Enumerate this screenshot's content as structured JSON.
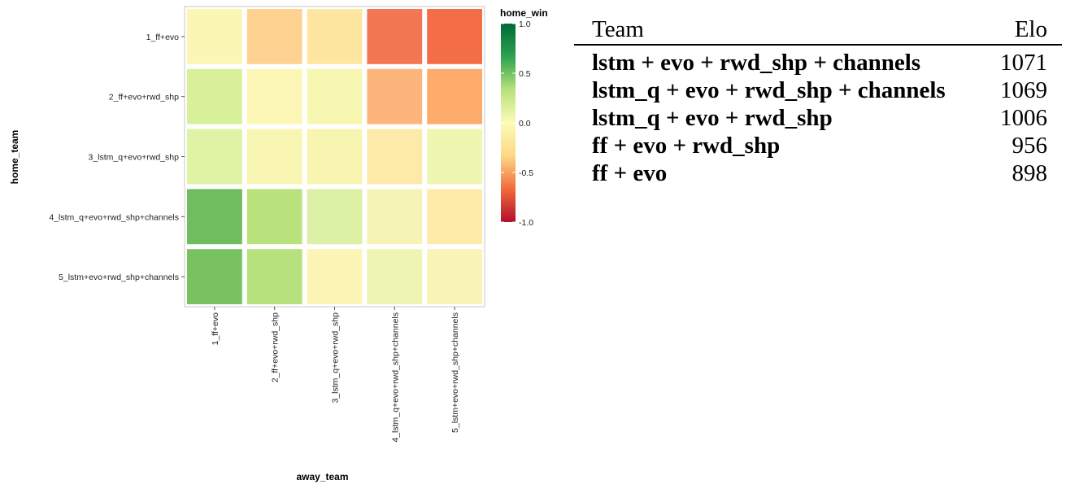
{
  "chart_data": {
    "type": "heatmap",
    "x_title": "away_team",
    "y_title": "home_team",
    "x_categories": [
      "1_ff+evo",
      "2_ff+evo+rwd_shp",
      "3_lstm_q+evo+rwd_shp",
      "4_lstm_q+evo+rwd_shp+channels",
      "5_lstm+evo+rwd_shp+channels"
    ],
    "y_categories": [
      "1_ff+evo",
      "2_ff+evo+rwd_shp",
      "3_lstm_q+evo+rwd_shp",
      "4_lstm_q+evo+rwd_shp+channels",
      "5_lstm+evo+rwd_shp+channels"
    ],
    "values": [
      [
        0.05,
        -0.25,
        -0.15,
        -0.75,
        -0.8
      ],
      [
        0.35,
        0.1,
        0.15,
        -0.5,
        -0.55
      ],
      [
        0.3,
        0.15,
        0.15,
        -0.1,
        0.2
      ],
      [
        0.8,
        0.5,
        0.3,
        0.1,
        -0.05
      ],
      [
        0.75,
        0.5,
        0.05,
        0.15,
        0.1
      ]
    ],
    "legend": {
      "title": "home_win",
      "ticks": [
        "1.0",
        "0.5",
        "0.0",
        "-0.5",
        "-1.0"
      ],
      "tick_values": [
        1.0,
        0.5,
        0.0,
        -0.5,
        -1.0
      ],
      "range": [
        -1.0,
        1.0
      ],
      "placement": "right",
      "colors": [
        "#b2102a",
        "#f16a3e",
        "#fdd884",
        "#fcfbb8",
        "#b7e27a",
        "#2da24f",
        "#006837"
      ]
    },
    "tile_colors": [
      [
        "#fcf6b4",
        "#fed290",
        "#fee6a0",
        "#f37752",
        "#f36e47"
      ],
      [
        "#d9f09a",
        "#fcf7b6",
        "#f8f7b1",
        "#fdb57b",
        "#fdab6b"
      ],
      [
        "#e0f2a4",
        "#f9f5b2",
        "#f8f5b0",
        "#fde9a8",
        "#eef6b2"
      ],
      [
        "#6fbd5f",
        "#b9e27c",
        "#dcf0a6",
        "#f5f4b6",
        "#feeaa9"
      ],
      [
        "#78c261",
        "#b6e17d",
        "#fcf5b6",
        "#eef5b2",
        "#f7f4b6"
      ]
    ],
    "grid": false
  },
  "elo_table": {
    "headers": [
      "Team",
      "Elo"
    ],
    "rows": [
      {
        "team": "lstm + evo + rwd_shp + channels",
        "elo": "1071"
      },
      {
        "team": "lstm_q + evo + rwd_shp + channels",
        "elo": "1069"
      },
      {
        "team": "lstm_q + evo + rwd_shp",
        "elo": "1006"
      },
      {
        "team": "ff + evo + rwd_shp",
        "elo": "956"
      },
      {
        "team": "ff + evo",
        "elo": "898"
      }
    ]
  }
}
